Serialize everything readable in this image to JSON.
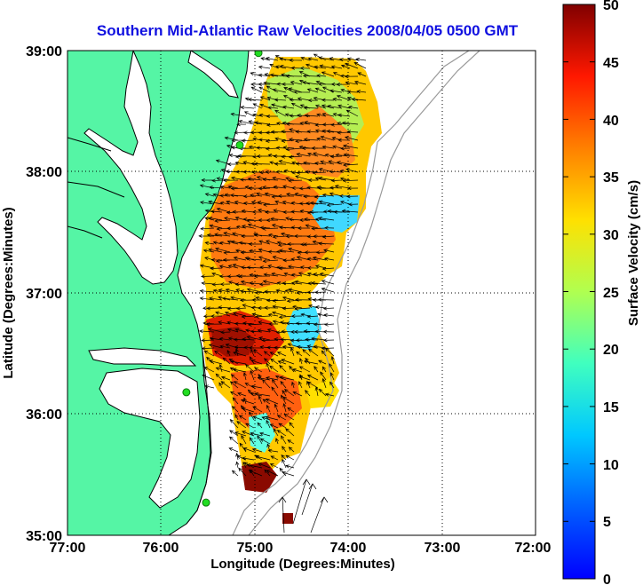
{
  "title": "Southern Mid-Atlantic Raw Velocities 2008/04/05 0500 GMT",
  "x_axis": {
    "label": "Longitude (Degrees:Minutes)",
    "ticks": [
      "77:00",
      "76:00",
      "75:00",
      "74:00",
      "73:00",
      "72:00"
    ],
    "values": [
      -77,
      -76,
      -75,
      -74,
      -73,
      -72
    ]
  },
  "y_axis": {
    "label": "Latitude (Degrees:Minutes)",
    "ticks": [
      "39:00",
      "38:00",
      "37:00",
      "36:00",
      "35:00"
    ],
    "values": [
      39,
      38,
      37,
      36,
      35
    ]
  },
  "colorbar": {
    "label": "Surface Velocity (cm/s)",
    "ticks": [
      "50",
      "45",
      "40",
      "35",
      "30",
      "25",
      "20",
      "15",
      "10",
      "5",
      "0"
    ],
    "min": 0,
    "max": 50,
    "colormap": "jet"
  },
  "colors": {
    "land": "#55f5a5",
    "coastline": "#000000",
    "grid": "#000000",
    "bathymetry": "#9a9a9a",
    "title": "#1010e0",
    "station": "#22dd22"
  },
  "map_extent": {
    "lon": [
      -77,
      -72
    ],
    "lat": [
      35,
      39
    ]
  },
  "stations": [
    {
      "lat": 38.98,
      "lon": -74.96
    },
    {
      "lat": 38.22,
      "lon": -75.16
    },
    {
      "lat": 36.18,
      "lon": -75.73
    },
    {
      "lat": 35.27,
      "lon": -75.52
    }
  ],
  "grid": "dotted"
}
